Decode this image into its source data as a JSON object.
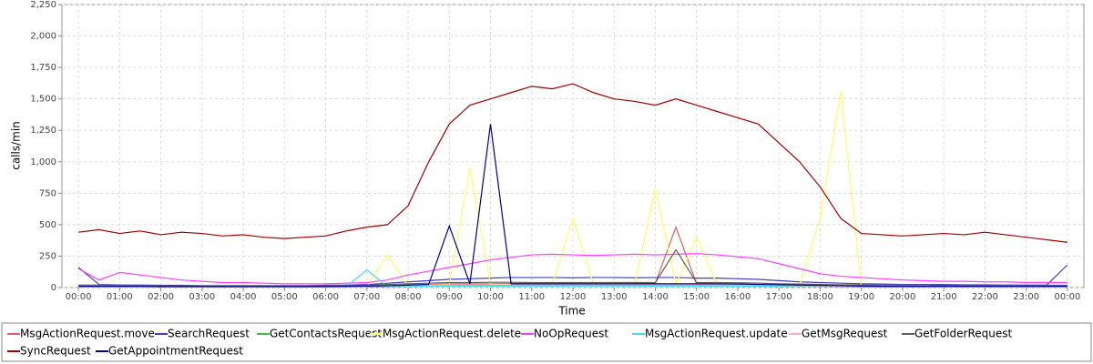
{
  "chart_data": {
    "type": "line",
    "x_label": "Time",
    "y_label": "calls/min",
    "x": [
      0,
      0.5,
      1,
      1.5,
      2,
      2.5,
      3,
      3.5,
      4,
      4.5,
      5,
      5.5,
      6,
      6.5,
      7,
      7.5,
      8,
      8.5,
      9,
      9.5,
      10,
      10.5,
      11,
      11.5,
      12,
      12.5,
      13,
      13.5,
      14,
      14.5,
      15,
      15.5,
      16,
      16.5,
      17,
      17.5,
      18,
      18.5,
      19,
      19.5,
      20,
      20.5,
      21,
      21.5,
      22,
      22.5,
      23,
      23.5,
      24
    ],
    "xlim": [
      -0.4,
      24.4
    ],
    "xticks": [
      {
        "value": 0,
        "label": "00:00"
      },
      {
        "value": 1,
        "label": "01:00"
      },
      {
        "value": 2,
        "label": "02:00"
      },
      {
        "value": 3,
        "label": "03:00"
      },
      {
        "value": 4,
        "label": "04:00"
      },
      {
        "value": 5,
        "label": "05:00"
      },
      {
        "value": 6,
        "label": "06:00"
      },
      {
        "value": 7,
        "label": "07:00"
      },
      {
        "value": 8,
        "label": "08:00"
      },
      {
        "value": 9,
        "label": "09:00"
      },
      {
        "value": 10,
        "label": "10:00"
      },
      {
        "value": 11,
        "label": "11:00"
      },
      {
        "value": 12,
        "label": "12:00"
      },
      {
        "value": 13,
        "label": "13:00"
      },
      {
        "value": 14,
        "label": "14:00"
      },
      {
        "value": 15,
        "label": "15:00"
      },
      {
        "value": 16,
        "label": "16:00"
      },
      {
        "value": 17,
        "label": "17:00"
      },
      {
        "value": 18,
        "label": "18:00"
      },
      {
        "value": 19,
        "label": "19:00"
      },
      {
        "value": 20,
        "label": "20:00"
      },
      {
        "value": 21,
        "label": "21:00"
      },
      {
        "value": 22,
        "label": "22:00"
      },
      {
        "value": 23,
        "label": "23:00"
      },
      {
        "value": 24,
        "label": "00:00"
      }
    ],
    "ylim": [
      0,
      2250
    ],
    "yticks": [
      0,
      250,
      500,
      750,
      {
        "value": 1000,
        "label": "1,000"
      },
      {
        "value": 1250,
        "label": "1,250"
      },
      {
        "value": 1500,
        "label": "1,500"
      },
      {
        "value": 1750,
        "label": "1,750"
      },
      {
        "value": 2000,
        "label": "2,000"
      },
      {
        "value": 2250,
        "label": "2,250"
      }
    ],
    "grid": true,
    "series": [
      {
        "name": "MsgActionRequest.move",
        "color": "#e06060",
        "values": [
          10,
          10,
          8,
          8,
          6,
          6,
          5,
          5,
          5,
          5,
          5,
          5,
          6,
          8,
          10,
          15,
          20,
          25,
          30,
          30,
          30,
          32,
          30,
          30,
          30,
          30,
          30,
          30,
          35,
          480,
          30,
          30,
          28,
          25,
          22,
          20,
          18,
          15,
          12,
          10,
          10,
          10,
          10,
          8,
          8,
          8,
          8,
          8,
          8
        ]
      },
      {
        "name": "SearchRequest",
        "color": "#4040c0",
        "values": [
          160,
          25,
          20,
          20,
          18,
          18,
          15,
          15,
          15,
          15,
          15,
          15,
          18,
          20,
          25,
          35,
          45,
          55,
          65,
          70,
          75,
          80,
          80,
          80,
          78,
          80,
          80,
          78,
          80,
          80,
          75,
          75,
          70,
          65,
          55,
          45,
          40,
          35,
          30,
          28,
          25,
          25,
          25,
          22,
          22,
          20,
          20,
          20,
          180
        ]
      },
      {
        "name": "GetContactsRequest",
        "color": "#40c040",
        "values": [
          5,
          5,
          5,
          5,
          4,
          4,
          4,
          4,
          4,
          4,
          4,
          4,
          4,
          5,
          6,
          8,
          10,
          12,
          15,
          15,
          15,
          15,
          15,
          15,
          15,
          15,
          15,
          15,
          15,
          15,
          15,
          15,
          12,
          12,
          10,
          10,
          8,
          8,
          6,
          6,
          5,
          5,
          5,
          5,
          5,
          5,
          5,
          5,
          5
        ]
      },
      {
        "name": "MsgActionRequest.delete",
        "color": "#ffff60",
        "values": [
          5,
          5,
          5,
          5,
          4,
          4,
          4,
          4,
          4,
          4,
          4,
          4,
          5,
          6,
          8,
          260,
          15,
          20,
          25,
          950,
          25,
          25,
          25,
          25,
          550,
          25,
          25,
          25,
          780,
          25,
          400,
          25,
          20,
          20,
          18,
          15,
          550,
          1560,
          10,
          8,
          8,
          8,
          6,
          6,
          6,
          6,
          6,
          6,
          6
        ]
      },
      {
        "name": "NoOpRequest",
        "color": "#ff40ff",
        "values": [
          150,
          60,
          120,
          100,
          80,
          60,
          50,
          40,
          40,
          35,
          30,
          30,
          30,
          35,
          40,
          60,
          100,
          130,
          160,
          190,
          220,
          240,
          260,
          265,
          260,
          255,
          260,
          265,
          260,
          265,
          270,
          260,
          245,
          230,
          190,
          150,
          110,
          90,
          80,
          70,
          60,
          55,
          50,
          50,
          45,
          45,
          40,
          40,
          40
        ]
      },
      {
        "name": "MsgActionRequest.update",
        "color": "#40e0f0",
        "values": [
          5,
          5,
          5,
          5,
          4,
          4,
          4,
          4,
          4,
          4,
          4,
          4,
          5,
          5,
          140,
          8,
          10,
          12,
          12,
          12,
          12,
          12,
          12,
          12,
          12,
          12,
          12,
          12,
          12,
          12,
          12,
          12,
          10,
          10,
          10,
          8,
          8,
          6,
          6,
          5,
          5,
          5,
          5,
          5,
          5,
          5,
          5,
          5,
          5
        ]
      },
      {
        "name": "GetMsgRequest",
        "color": "#ffb0b0",
        "values": [
          10,
          10,
          10,
          10,
          8,
          8,
          8,
          8,
          8,
          8,
          8,
          8,
          8,
          10,
          12,
          15,
          18,
          20,
          22,
          22,
          22,
          22,
          22,
          22,
          22,
          22,
          22,
          22,
          22,
          22,
          22,
          22,
          20,
          20,
          18,
          16,
          14,
          12,
          12,
          10,
          10,
          10,
          10,
          10,
          10,
          10,
          10,
          10,
          10
        ]
      },
      {
        "name": "GetFolderRequest",
        "color": "#606060",
        "values": [
          20,
          20,
          18,
          18,
          15,
          15,
          15,
          15,
          15,
          15,
          15,
          15,
          15,
          18,
          20,
          25,
          30,
          35,
          40,
          40,
          42,
          42,
          40,
          40,
          40,
          40,
          40,
          40,
          40,
          300,
          40,
          40,
          38,
          35,
          30,
          28,
          25,
          22,
          20,
          20,
          20,
          20,
          18,
          18,
          18,
          18,
          18,
          18,
          18
        ]
      },
      {
        "name": "SyncRequest",
        "color": "#a00000",
        "values": [
          440,
          460,
          430,
          450,
          420,
          440,
          430,
          410,
          420,
          400,
          390,
          400,
          410,
          450,
          480,
          500,
          650,
          1000,
          1300,
          1450,
          1500,
          1550,
          1600,
          1580,
          1620,
          1550,
          1500,
          1480,
          1450,
          1500,
          1450,
          1400,
          1350,
          1300,
          1150,
          1000,
          800,
          550,
          430,
          420,
          410,
          420,
          430,
          420,
          440,
          420,
          400,
          380,
          360
        ]
      },
      {
        "name": "GetAppointmentRequest",
        "color": "#000090",
        "values": [
          10,
          10,
          10,
          10,
          8,
          8,
          8,
          8,
          8,
          8,
          8,
          8,
          8,
          10,
          12,
          15,
          20,
          25,
          490,
          30,
          1300,
          30,
          30,
          30,
          30,
          30,
          30,
          30,
          30,
          30,
          30,
          30,
          28,
          25,
          22,
          20,
          18,
          15,
          12,
          10,
          10,
          10,
          10,
          10,
          10,
          10,
          10,
          10,
          10
        ]
      }
    ]
  }
}
